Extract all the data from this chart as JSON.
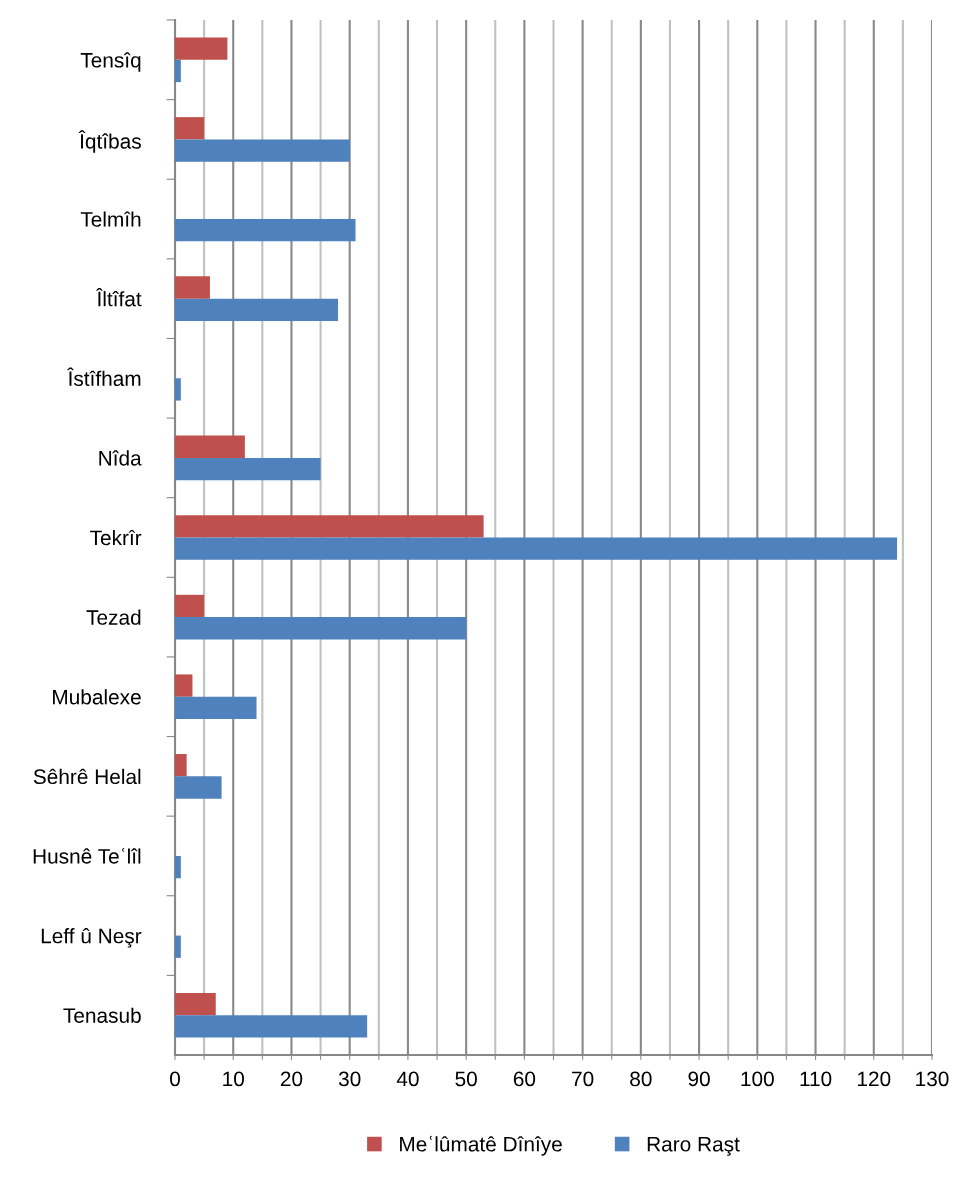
{
  "chart_data": {
    "type": "bar",
    "orientation": "horizontal",
    "categories": [
      "Tensîq",
      "Îqtîbas",
      "Telmîh",
      "Îltîfat",
      "Îstîfham",
      "Nîda",
      "Tekrîr",
      "Tezad",
      "Mubalexe",
      "Sêhrê Helal",
      "Husnê Teʿlîl",
      "Leff û Neşr",
      "Tenasub"
    ],
    "series": [
      {
        "name": "Meʿlûmatê Dînîye",
        "color": "#c0504d",
        "values": [
          9,
          5,
          0,
          6,
          0,
          12,
          53,
          5,
          3,
          2,
          0,
          0,
          7
        ]
      },
      {
        "name": "Raro Raşt",
        "color": "#4f81bd",
        "values": [
          1,
          30,
          31,
          28,
          1,
          25,
          124,
          50,
          14,
          8,
          1,
          1,
          33
        ]
      }
    ],
    "xlim": [
      0,
      130
    ],
    "xticks": [
      0,
      {
        "value": 5,
        "label": null
      },
      10,
      {
        "value": 15,
        "label": null
      },
      20,
      {
        "value": 25,
        "label": null
      },
      30,
      {
        "value": 35,
        "label": null
      },
      40,
      {
        "value": 45,
        "label": null
      },
      50,
      {
        "value": 55,
        "label": null
      },
      60,
      {
        "value": 65,
        "label": null
      },
      70,
      {
        "value": 75,
        "label": null
      },
      80,
      {
        "value": 85,
        "label": null
      },
      90,
      {
        "value": 95,
        "label": null
      },
      100,
      {
        "value": 105,
        "label": null
      },
      110,
      {
        "value": 115,
        "label": null
      },
      120,
      {
        "value": 125,
        "label": null
      },
      130
    ],
    "grid": "x",
    "legend": "bottom"
  }
}
